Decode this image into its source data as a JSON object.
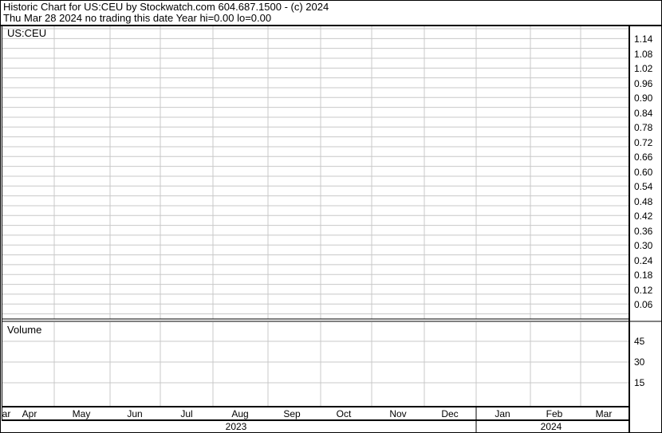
{
  "header": {
    "title": "Historic Chart for US:CEU by Stockwatch.com 604.687.1500 - (c) 2024",
    "subtitle": "Thu Mar 28 2024   no trading this date  Year hi=0.00  lo=0.00"
  },
  "chart_data": [
    {
      "type": "line",
      "title": "US:CEU",
      "series": [],
      "y_ticks": [
        "1.14",
        "1.08",
        "1.02",
        "0.96",
        "0.90",
        "0.84",
        "0.78",
        "0.72",
        "0.66",
        "0.60",
        "0.54",
        "0.48",
        "0.42",
        "0.36",
        "0.30",
        "0.24",
        "0.18",
        "0.12",
        "0.06"
      ],
      "ylim": [
        0,
        1.2
      ],
      "grid": true
    },
    {
      "type": "bar",
      "title": "Volume",
      "series": [],
      "y_ticks": [
        "45",
        "30",
        "15"
      ],
      "ylim": [
        0,
        60
      ],
      "grid": true
    }
  ],
  "x_axis": {
    "months": [
      "ar",
      "Apr",
      "May",
      "Jun",
      "Jul",
      "Aug",
      "Sep",
      "Oct",
      "Nov",
      "Dec",
      "Jan",
      "Feb",
      "Mar"
    ],
    "years": [
      "2023",
      "2024"
    ]
  }
}
